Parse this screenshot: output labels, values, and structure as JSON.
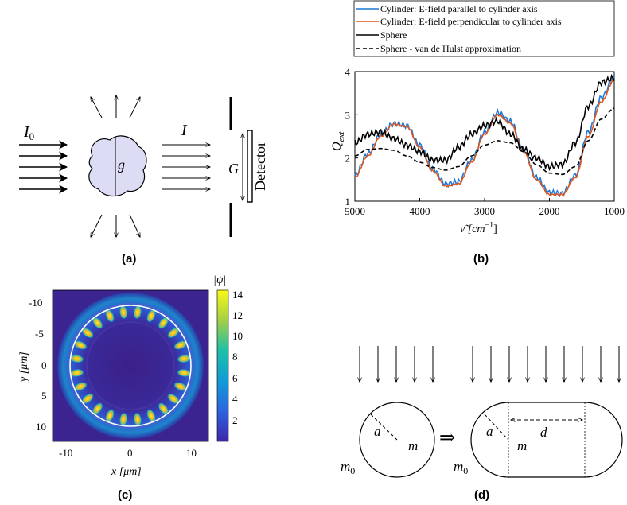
{
  "panels": {
    "a": {
      "label": "(a)",
      "incident_label_base": "I",
      "incident_label_sub": "0",
      "transmitted_label": "I",
      "particle_label": "g",
      "aperture_label": "G",
      "detector_label": "Detector"
    },
    "b": {
      "label": "(b)",
      "ylabel_base": "Q",
      "ylabel_sub": "ext",
      "xlabel_main": "ν̃  [cm",
      "xlabel_sup": "−1",
      "xlabel_end": "]",
      "legend": [
        "Cylinder: E-field parallel to cylinder axis",
        "Cylinder: E-field perpendicular to cylinder axis",
        "Sphere",
        "Sphere - van de Hulst approximation"
      ],
      "colors": {
        "parallel": "#1f77d4",
        "perpendicular": "#e2571b",
        "sphere": "#000000",
        "vdh": "#000000"
      }
    },
    "c": {
      "label": "(c)",
      "colorbar_label": "|ψ|",
      "xlabel": "x [μm]",
      "ylabel": "y [μm]",
      "x_ticks": [
        "-10",
        "0",
        "10"
      ],
      "y_ticks": [
        "-10",
        "-5",
        "0",
        "5",
        "10"
      ],
      "colorbar_ticks": [
        "14",
        "12",
        "10",
        "8",
        "6",
        "4",
        "2"
      ],
      "colormap": [
        "#3b1f87",
        "#2d5fd8",
        "#14a4d8",
        "#28c4a0",
        "#9ad65a",
        "#f9e21a"
      ]
    },
    "d": {
      "label": "(d)",
      "radius_label": "a",
      "medium_label": "m",
      "outer_medium_label": "m",
      "outer_medium_sub": "0",
      "length_label": "d",
      "arrow_symbol": "⇒"
    }
  },
  "chart_data": {
    "type": "line",
    "title": "",
    "xlabel": "ν̃ [cm−1]",
    "ylabel": "Q_ext",
    "xlim": [
      5000,
      1000
    ],
    "ylim": [
      1,
      4
    ],
    "x_ticks": [
      5000,
      4000,
      3000,
      2000,
      1000
    ],
    "y_ticks": [
      1,
      2,
      3,
      4
    ],
    "grid": false,
    "legend_position": "top",
    "x": [
      5000,
      4800,
      4600,
      4400,
      4200,
      4000,
      3800,
      3600,
      3400,
      3200,
      3000,
      2800,
      2600,
      2400,
      2200,
      2000,
      1800,
      1600,
      1400,
      1200,
      1000
    ],
    "series": [
      {
        "name": "Cylinder: E-field parallel to cylinder axis",
        "values": [
          1.6,
          2.1,
          2.55,
          2.8,
          2.75,
          2.3,
          1.75,
          1.4,
          1.45,
          1.95,
          2.6,
          3.05,
          2.85,
          2.2,
          1.55,
          1.2,
          1.18,
          1.6,
          2.6,
          3.4,
          3.85
        ]
      },
      {
        "name": "Cylinder: E-field perpendicular to cylinder axis",
        "values": [
          1.55,
          2.05,
          2.5,
          2.78,
          2.73,
          2.25,
          1.7,
          1.35,
          1.4,
          1.9,
          2.55,
          3.0,
          2.8,
          2.15,
          1.5,
          1.15,
          1.15,
          1.55,
          2.5,
          3.3,
          3.8
        ]
      },
      {
        "name": "Sphere",
        "values": [
          2.35,
          2.55,
          2.6,
          2.45,
          2.3,
          2.15,
          1.95,
          1.95,
          2.25,
          2.55,
          2.75,
          2.85,
          2.55,
          2.2,
          2.0,
          1.8,
          1.85,
          2.35,
          3.2,
          3.75,
          3.85
        ]
      },
      {
        "name": "Sphere - van de Hulst approximation",
        "values": [
          2.05,
          2.2,
          2.22,
          2.18,
          2.05,
          1.9,
          1.78,
          1.72,
          1.8,
          2.05,
          2.3,
          2.4,
          2.35,
          2.15,
          1.85,
          1.65,
          1.62,
          1.8,
          2.4,
          2.9,
          3.15
        ]
      }
    ]
  }
}
